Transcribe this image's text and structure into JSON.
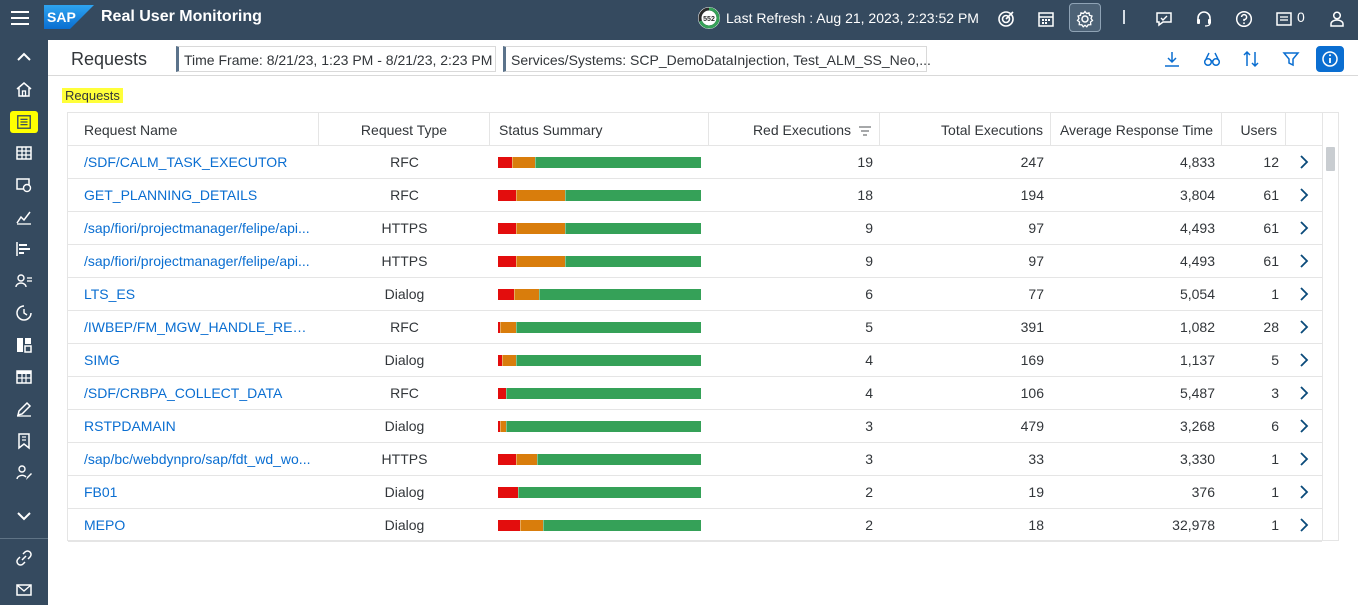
{
  "shell": {
    "title": "Real User Monitoring",
    "logo_text": "SAP",
    "refresh_badge": "552",
    "last_refresh": "Last Refresh : Aug 21, 2023, 2:23:52 PM",
    "notification_count": "0"
  },
  "page": {
    "title": "Requests",
    "time_frame": "Time Frame: 8/21/23, 1:23 PM - 8/21/23, 2:23 PM",
    "services": "Services/Systems: SCP_DemoDataInjection, Test_ALM_SS_Neo,...",
    "subtitle": "Requests"
  },
  "colors": {
    "red": "#e30d0d",
    "orange": "#d97d0c",
    "green": "#35a158",
    "link": "#0a6ed1",
    "highlight": "#ffff00",
    "shell": "#354a5f"
  },
  "table": {
    "headers": {
      "request_name": "Request Name",
      "request_type": "Request Type",
      "status_summary": "Status Summary",
      "red_executions": "Red Executions",
      "total_executions": "Total Executions",
      "avg_response": "Average Response Time",
      "users": "Users"
    },
    "rows": [
      {
        "name": "/SDF/CALM_TASK_EXECUTOR",
        "type": "RFC",
        "red": "19",
        "total": "247",
        "avg": "4,833",
        "users": "12",
        "status": [
          0.07,
          0.11,
          0.82
        ]
      },
      {
        "name": "GET_PLANNING_DETAILS",
        "type": "RFC",
        "red": "18",
        "total": "194",
        "avg": "3,804",
        "users": "61",
        "status": [
          0.09,
          0.24,
          0.67
        ]
      },
      {
        "name": "/sap/fiori/projectmanager/felipe/api...",
        "type": "HTTPS",
        "red": "9",
        "total": "97",
        "avg": "4,493",
        "users": "61",
        "status": [
          0.09,
          0.24,
          0.67
        ]
      },
      {
        "name": "/sap/fiori/projectmanager/felipe/api...",
        "type": "HTTPS",
        "red": "9",
        "total": "97",
        "avg": "4,493",
        "users": "61",
        "status": [
          0.09,
          0.24,
          0.67
        ]
      },
      {
        "name": "LTS_ES",
        "type": "Dialog",
        "red": "6",
        "total": "77",
        "avg": "5,054",
        "users": "1",
        "status": [
          0.08,
          0.12,
          0.8
        ]
      },
      {
        "name": "/IWBEP/FM_MGW_HANDLE_REQ...",
        "type": "RFC",
        "red": "5",
        "total": "391",
        "avg": "1,082",
        "users": "28",
        "status": [
          0.01,
          0.08,
          0.91
        ]
      },
      {
        "name": "SIMG",
        "type": "Dialog",
        "red": "4",
        "total": "169",
        "avg": "1,137",
        "users": "5",
        "status": [
          0.02,
          0.07,
          0.91
        ]
      },
      {
        "name": "/SDF/CRBPA_COLLECT_DATA",
        "type": "RFC",
        "red": "4",
        "total": "106",
        "avg": "5,487",
        "users": "3",
        "status": [
          0.04,
          0.0,
          0.96
        ]
      },
      {
        "name": "RSTPDAMAIN",
        "type": "Dialog",
        "red": "3",
        "total": "479",
        "avg": "3,268",
        "users": "6",
        "status": [
          0.01,
          0.03,
          0.96
        ]
      },
      {
        "name": "/sap/bc/webdynpro/sap/fdt_wd_wo...",
        "type": "HTTPS",
        "red": "3",
        "total": "33",
        "avg": "3,330",
        "users": "1",
        "status": [
          0.09,
          0.1,
          0.81
        ]
      },
      {
        "name": "FB01",
        "type": "Dialog",
        "red": "2",
        "total": "19",
        "avg": "376",
        "users": "1",
        "status": [
          0.1,
          0.0,
          0.9
        ]
      },
      {
        "name": "MEPO",
        "type": "Dialog",
        "red": "2",
        "total": "18",
        "avg": "32,978",
        "users": "1",
        "status": [
          0.11,
          0.11,
          0.78
        ]
      }
    ]
  },
  "icons": {
    "shell": [
      "menu-icon",
      "target-icon",
      "calendar-icon",
      "settings-icon",
      "feedback-icon",
      "support-icon",
      "help-icon",
      "notifications-icon",
      "user-icon"
    ],
    "nav": [
      "collapse-up-icon",
      "home-icon",
      "requests-list-icon",
      "table-icon",
      "monitor-icon",
      "analytics-icon",
      "bar-chart-icon",
      "users-list-icon",
      "history-icon",
      "dashboard-icon",
      "grid-icon",
      "edit-icon",
      "bookmark-icon",
      "person-edit-icon",
      "expand-down-icon",
      "link-icon",
      "mail-icon"
    ],
    "toolbar": [
      "download-icon",
      "binoculars-icon",
      "sort-icon",
      "filter-icon",
      "info-icon"
    ]
  }
}
